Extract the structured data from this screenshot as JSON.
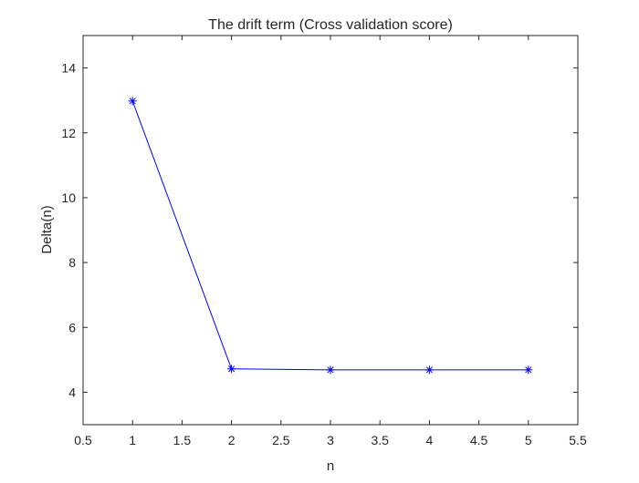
{
  "chart_data": {
    "type": "line",
    "title": "The drift term (Cross validation score)",
    "xlabel": "n",
    "ylabel": "Delta(n)",
    "xlim": [
      0.5,
      5.5
    ],
    "ylim": [
      3,
      15
    ],
    "xticks": [
      0.5,
      1,
      1.5,
      2,
      2.5,
      3,
      3.5,
      4,
      4.5,
      5,
      5.5
    ],
    "xtick_labels": [
      "0.5",
      "1",
      "1.5",
      "2",
      "2.5",
      "3",
      "3.5",
      "4",
      "4.5",
      "5",
      "5.5"
    ],
    "yticks": [
      4,
      6,
      8,
      10,
      12,
      14
    ],
    "ytick_labels": [
      "4",
      "6",
      "8",
      "10",
      "12",
      "14"
    ],
    "grid": false,
    "legend": "none",
    "series": [
      {
        "color": "#0000ff",
        "marker": "asterisk",
        "x": [
          1,
          2,
          3,
          4,
          5
        ],
        "y": [
          12.98,
          4.72,
          4.69,
          4.69,
          4.69
        ]
      }
    ]
  }
}
